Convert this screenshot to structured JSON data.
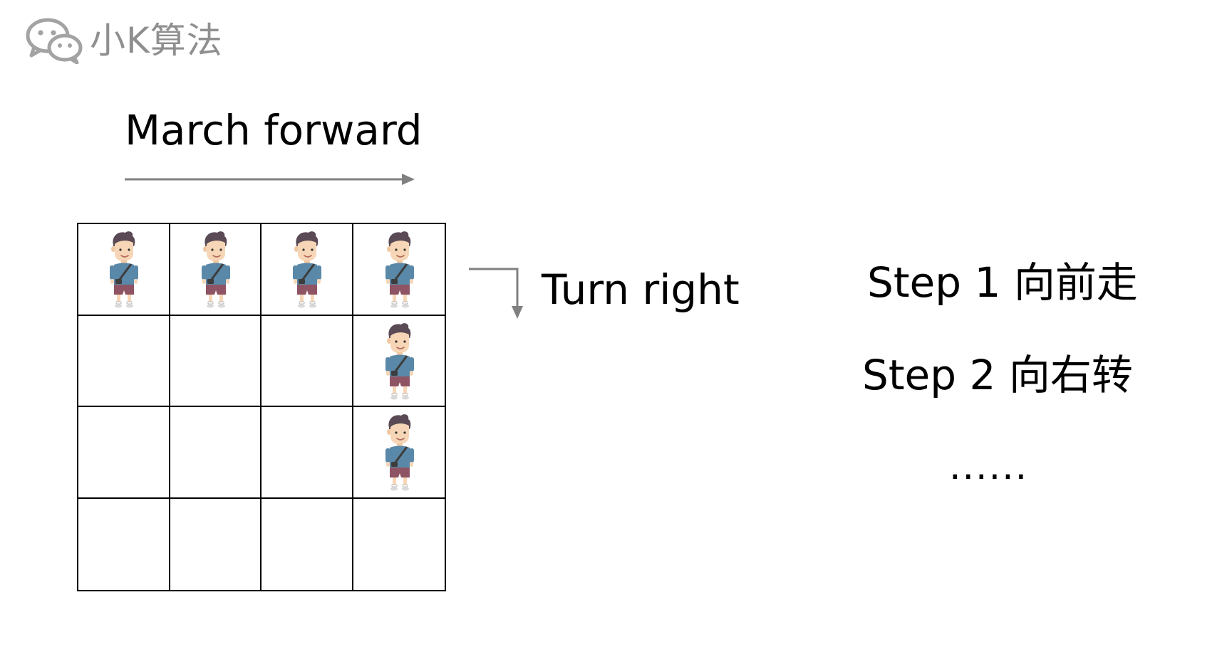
{
  "brand": {
    "name": "小K算法",
    "icon": "wechat-icon",
    "color": "#9a9a9a"
  },
  "labels": {
    "march": "March forward",
    "turn": "Turn right"
  },
  "arrow_color": "#808080",
  "grid": {
    "rows": 4,
    "cols": 4,
    "occupied": [
      [
        true,
        true,
        true,
        true
      ],
      [
        false,
        false,
        false,
        true
      ],
      [
        false,
        false,
        false,
        true
      ],
      [
        false,
        false,
        false,
        false
      ]
    ],
    "occupant_icon": "person-icon"
  },
  "steps": {
    "items": [
      "Step 1 向前走",
      "Step 2 向右转"
    ],
    "more": "......"
  }
}
